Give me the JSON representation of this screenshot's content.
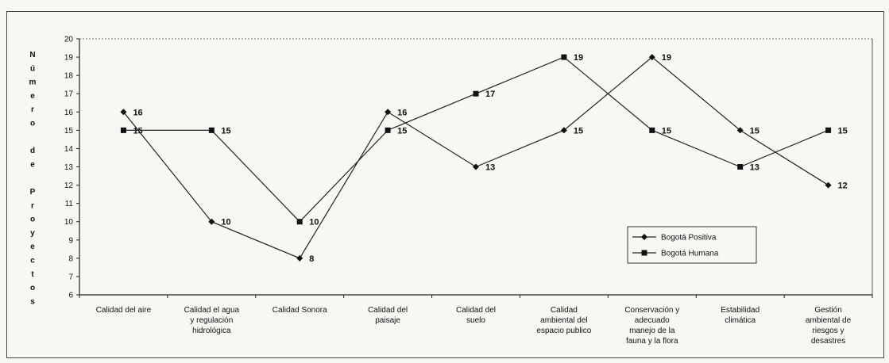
{
  "chart_data": {
    "type": "line",
    "ylabel": "Número de Proyectos",
    "ylim": [
      6,
      20
    ],
    "yticks": [
      6,
      7,
      8,
      9,
      10,
      11,
      12,
      13,
      14,
      15,
      16,
      17,
      18,
      19,
      20
    ],
    "grid": false,
    "legend_position": "right",
    "categories": [
      [
        "Calidad del aire"
      ],
      [
        "Calidad el agua",
        "y regulación",
        "hidrológica"
      ],
      [
        "Calidad Sonora"
      ],
      [
        "Calidad del",
        "paisaje"
      ],
      [
        "Calidad del",
        "suelo"
      ],
      [
        "Calidad",
        "ambiental del",
        "espacio publico"
      ],
      [
        "Conservación y",
        "adecuado",
        "manejo de la",
        "fauna y la flora"
      ],
      [
        "Estabilidad",
        "climática"
      ],
      [
        "Gestión",
        "ambiental de",
        "riesgos y",
        "desastres"
      ]
    ],
    "series": [
      {
        "name": "Bogotá Positiva",
        "marker": "diamond",
        "values": [
          16,
          10,
          8,
          16,
          13,
          15,
          19,
          15,
          12
        ]
      },
      {
        "name": "Bogotá Humana",
        "marker": "square",
        "values": [
          15,
          15,
          10,
          15,
          17,
          19,
          15,
          13,
          15
        ]
      }
    ]
  }
}
